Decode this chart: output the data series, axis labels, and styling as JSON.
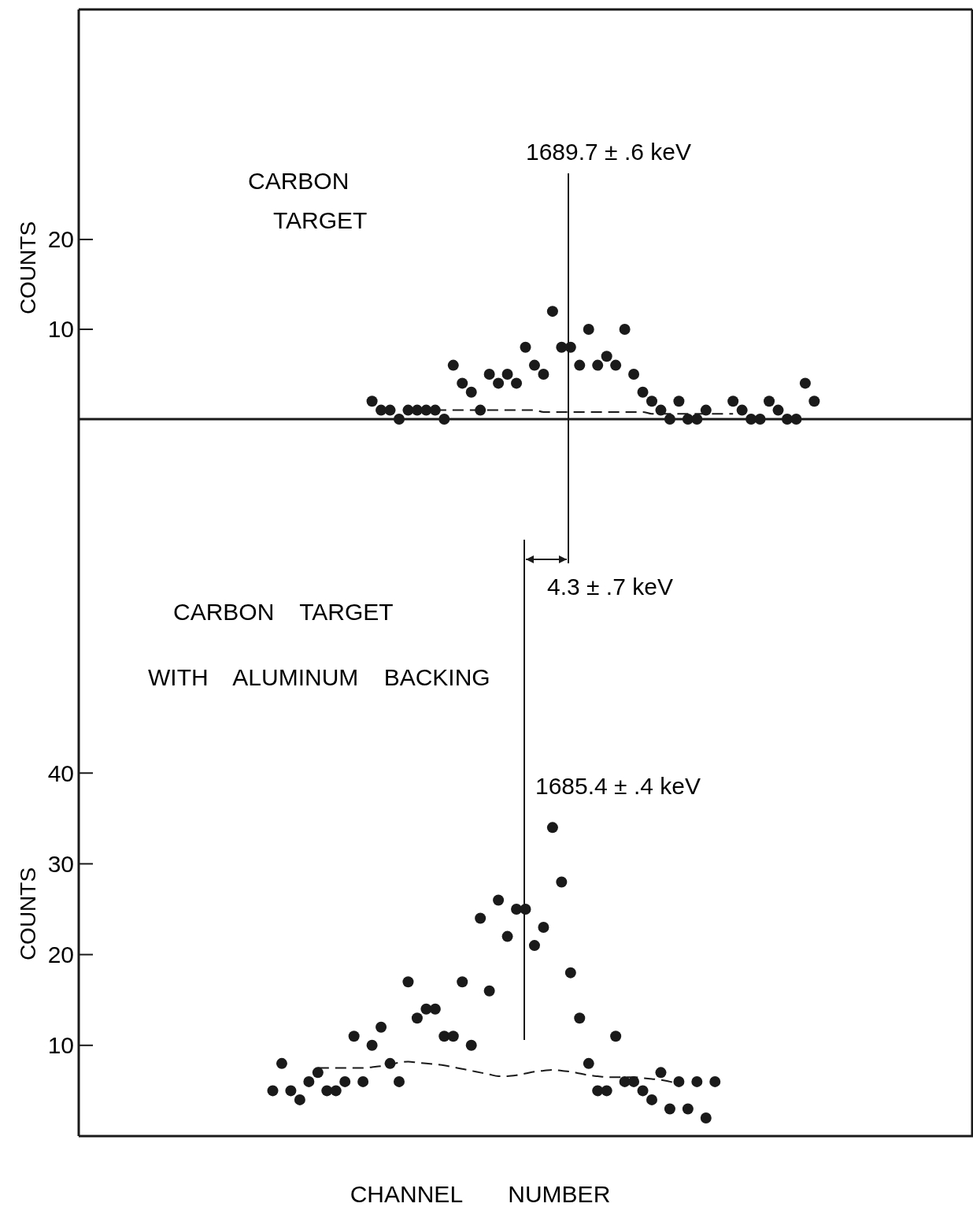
{
  "chart_data": [
    {
      "type": "scatter",
      "categories": [
        null,
        null,
        null,
        null,
        null,
        null,
        null,
        null,
        null,
        null,
        null,
        null,
        null,
        null,
        null,
        null,
        null,
        null,
        null,
        null,
        null,
        null,
        null,
        null,
        null,
        null,
        null,
        null,
        null,
        null,
        null,
        null,
        null,
        null,
        null,
        null,
        null,
        null,
        null,
        null,
        null,
        null,
        null,
        null,
        null,
        null,
        null,
        null,
        null,
        null,
        null,
        null,
        null,
        null,
        null,
        null,
        null,
        null,
        null,
        null,
        null,
        null,
        null,
        null,
        null,
        null,
        null,
        null,
        null,
        null,
        null,
        null,
        null,
        null,
        null,
        null,
        null,
        null,
        null,
        null,
        null,
        null,
        null,
        null,
        null,
        null,
        null,
        null,
        null,
        null,
        null,
        null,
        null,
        null,
        null,
        null,
        null,
        null,
        null
      ],
      "ylabel": "COUNTS",
      "ylim": [
        0,
        45.6
      ],
      "yticks": [
        10,
        20
      ],
      "tick_labels": "y",
      "series": [
        {
          "marker": "circle",
          "color": "#1a1a1a",
          "values": [
            null,
            null,
            null,
            null,
            null,
            null,
            null,
            null,
            null,
            null,
            null,
            null,
            null,
            null,
            null,
            null,
            null,
            null,
            null,
            null,
            null,
            null,
            null,
            null,
            null,
            null,
            null,
            null,
            null,
            null,
            null,
            null,
            2,
            1,
            1,
            0,
            1,
            1,
            1,
            1,
            0,
            6,
            4,
            3,
            1,
            5,
            4,
            5,
            4,
            8,
            6,
            5,
            12,
            8,
            8,
            6,
            10,
            6,
            7,
            6,
            10,
            5,
            3,
            2,
            1,
            0,
            2,
            0,
            0,
            1,
            null,
            null,
            2,
            1,
            0,
            0,
            2,
            1,
            0,
            0,
            4,
            2,
            null,
            null,
            null,
            null,
            null,
            null,
            null,
            null,
            null,
            null,
            null,
            null,
            null,
            null,
            null,
            null,
            null
          ]
        },
        {
          "type": "line",
          "marker": "none",
          "color": "#1a1a1a",
          "line_style": "dashed",
          "values": [
            null,
            null,
            null,
            null,
            null,
            null,
            null,
            null,
            null,
            null,
            null,
            null,
            null,
            null,
            null,
            null,
            null,
            null,
            null,
            null,
            null,
            null,
            null,
            null,
            null,
            null,
            null,
            null,
            null,
            null,
            null,
            null,
            null,
            null,
            null,
            null,
            null,
            null,
            null,
            1,
            1,
            1,
            1,
            1,
            1,
            1,
            1,
            1,
            1,
            1,
            1,
            0.8,
            0.8,
            0.8,
            0.8,
            0.8,
            0.8,
            0.8,
            0.8,
            0.8,
            0.8,
            0.8,
            0.8,
            0.6,
            0.6,
            0.6,
            0.6,
            0.6,
            0.6,
            0.6,
            0.6,
            0.6,
            0.6,
            null,
            null,
            null,
            null,
            null,
            null,
            null,
            null,
            null,
            null,
            null,
            null,
            null,
            null,
            null,
            null,
            null,
            null,
            null,
            null,
            null,
            null,
            null,
            null,
            null,
            null
          ]
        }
      ],
      "annotations": [
        "CARBON TARGET",
        "1689.7 ± .6 keV"
      ]
    },
    {
      "type": "scatter",
      "categories": [
        null,
        null,
        null,
        null,
        null,
        null,
        null,
        null,
        null,
        null,
        null,
        null,
        null,
        null,
        null,
        null,
        null,
        null,
        null,
        null,
        null,
        null,
        null,
        null,
        null,
        null,
        null,
        null,
        null,
        null,
        null,
        null,
        null,
        null,
        null,
        null,
        null,
        null,
        null,
        null,
        null,
        null,
        null,
        null,
        null,
        null,
        null,
        null,
        null,
        null,
        null,
        null,
        null,
        null,
        null,
        null,
        null,
        null,
        null,
        null,
        null,
        null,
        null,
        null,
        null,
        null,
        null,
        null,
        null,
        null,
        null,
        null,
        null,
        null,
        null,
        null,
        null,
        null,
        null,
        null,
        null,
        null,
        null,
        null,
        null,
        null,
        null,
        null,
        null,
        null,
        null,
        null,
        null,
        null,
        null,
        null,
        null,
        null,
        null
      ],
      "xlabel": "CHANNEL NUMBER",
      "ylabel": "COUNTS",
      "ylim": [
        0,
        79
      ],
      "yticks": [
        10,
        20,
        30,
        40
      ],
      "tick_labels": "y",
      "series": [
        {
          "marker": "circle",
          "color": "#1a1a1a",
          "values": [
            null,
            null,
            null,
            null,
            null,
            null,
            null,
            null,
            null,
            null,
            null,
            null,
            null,
            null,
            null,
            null,
            null,
            null,
            null,
            null,
            null,
            5,
            8,
            5,
            4,
            6,
            7,
            5,
            5,
            6,
            11,
            6,
            10,
            12,
            8,
            6,
            17,
            13,
            14,
            14,
            11,
            11,
            17,
            10,
            24,
            16,
            26,
            22,
            25,
            25,
            21,
            23,
            34,
            28,
            18,
            13,
            8,
            5,
            5,
            11,
            6,
            6,
            5,
            4,
            7,
            3,
            6,
            3,
            6,
            2,
            6,
            null,
            null,
            null,
            null,
            null,
            null,
            null,
            null,
            null,
            null,
            null,
            null,
            null,
            null,
            null,
            null,
            null,
            null,
            null,
            null,
            null,
            null,
            null,
            null,
            null,
            null,
            null,
            null
          ]
        },
        {
          "type": "line",
          "marker": "none",
          "color": "#1a1a1a",
          "line_style": "dashed",
          "values": [
            null,
            null,
            null,
            null,
            null,
            null,
            null,
            null,
            null,
            null,
            null,
            null,
            null,
            null,
            null,
            null,
            null,
            null,
            null,
            null,
            null,
            null,
            null,
            null,
            null,
            null,
            7.5,
            7.5,
            7.5,
            7.5,
            7.5,
            7.5,
            7.6,
            7.7,
            7.9,
            8.1,
            8.2,
            8.1,
            8,
            7.9,
            7.8,
            7.6,
            7.4,
            7.2,
            7,
            6.8,
            6.6,
            6.6,
            6.7,
            6.9,
            7.1,
            7.2,
            7.3,
            7.2,
            7.1,
            6.9,
            6.7,
            6.6,
            6.5,
            6.5,
            6.5,
            6.5,
            6.4,
            6.3,
            6.2,
            6,
            5.8,
            null,
            null,
            null,
            null,
            null,
            null,
            null,
            null,
            null,
            null,
            null,
            null,
            null,
            null,
            null,
            null,
            null,
            null,
            null,
            null,
            null,
            null,
            null,
            null,
            null,
            null,
            null,
            null,
            null,
            null,
            null,
            null
          ]
        }
      ],
      "annotations": [
        "CARBON TARGET",
        "WITH ALUMINUM BACKING",
        "4.3 ± .7 keV",
        "1685.4 ± .4 keV"
      ]
    }
  ]
}
